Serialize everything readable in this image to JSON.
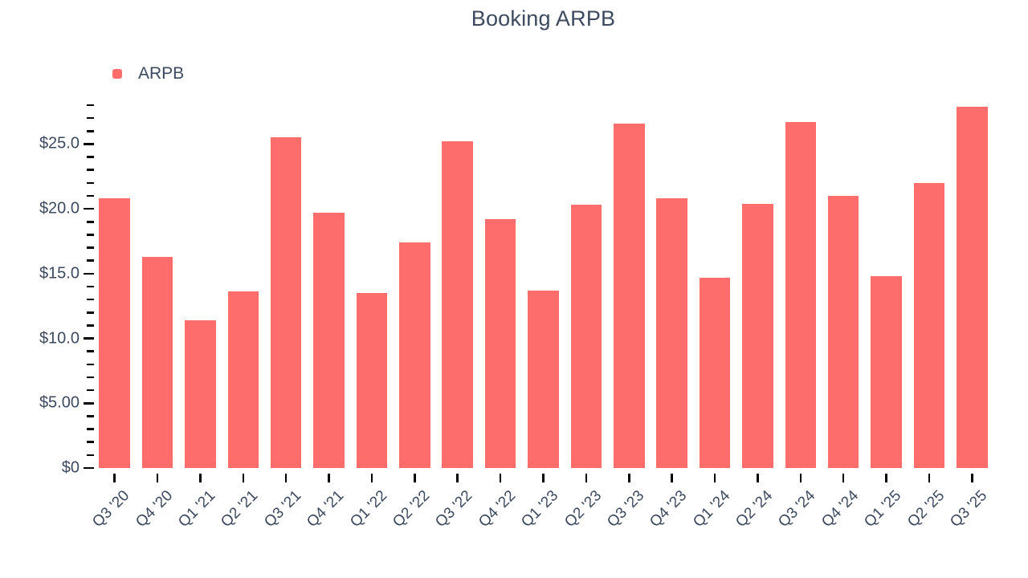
{
  "chart_data": {
    "type": "bar",
    "title": "Booking ARPB",
    "xlabel": "",
    "ylabel": "",
    "categories": [
      "Q3 '20",
      "Q4 '20",
      "Q1 '21",
      "Q2 '21",
      "Q3 '21",
      "Q4 '21",
      "Q1 '22",
      "Q2 '22",
      "Q3 '22",
      "Q4 '22",
      "Q1 '23",
      "Q2 '23",
      "Q3 '23",
      "Q4 '23",
      "Q1 '24",
      "Q2 '24",
      "Q3 '24",
      "Q4 '24",
      "Q1 '25",
      "Q2 '25",
      "Q3 '25"
    ],
    "series": [
      {
        "name": "ARPB",
        "color": "#FC6D6C",
        "values": [
          20.8,
          16.3,
          11.4,
          13.6,
          25.5,
          19.7,
          13.5,
          17.4,
          25.2,
          19.2,
          13.7,
          20.3,
          26.6,
          20.8,
          14.7,
          20.4,
          26.7,
          21.0,
          14.8,
          22.0,
          27.9
        ]
      }
    ],
    "ylim": [
      0,
      28
    ],
    "y_major_tick_step": 5,
    "y_minor_tick_step": 1,
    "y_tick_labels": {
      "0": "$0",
      "5": "$5.00",
      "10": "$10.0",
      "15": "$15.0",
      "20": "$20.0",
      "25": "$25.0"
    },
    "x_label_rotation": -45,
    "grid": false,
    "legend_position": "top-left"
  },
  "colors": {
    "bar": "#FC6D6C",
    "text": "#3D495E",
    "tick": "#000000",
    "background": "#FFFFFF"
  }
}
